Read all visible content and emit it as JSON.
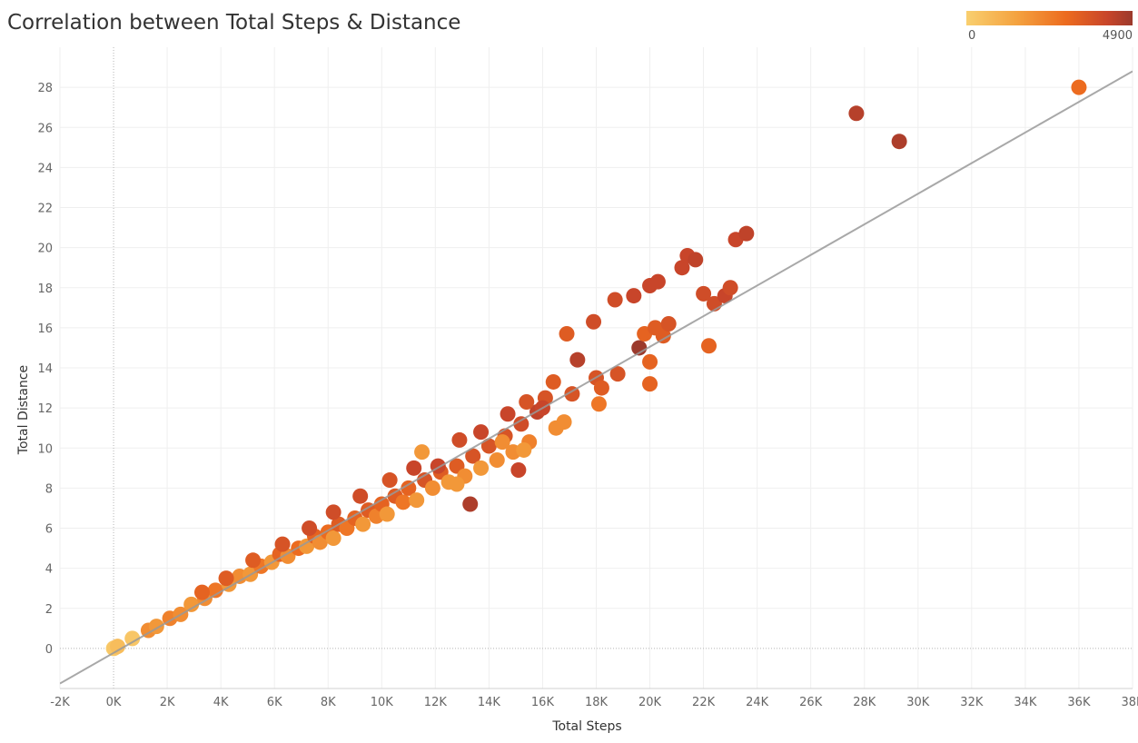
{
  "chart_data": {
    "type": "scatter",
    "title": "Correlation between Total Steps & Distance",
    "xlabel": "Total Steps",
    "ylabel": "Total Distance",
    "xlim": [
      -2000,
      38000
    ],
    "ylim": [
      -2,
      30
    ],
    "x_ticks": [
      -2000,
      0,
      2000,
      4000,
      6000,
      8000,
      10000,
      12000,
      14000,
      16000,
      18000,
      20000,
      22000,
      24000,
      26000,
      28000,
      30000,
      32000,
      34000,
      36000,
      38000
    ],
    "x_tick_labels": [
      "-2K",
      "0K",
      "2K",
      "4K",
      "6K",
      "8K",
      "10K",
      "12K",
      "14K",
      "16K",
      "18K",
      "20K",
      "22K",
      "24K",
      "26K",
      "28K",
      "30K",
      "32K",
      "34K",
      "36K",
      "38K"
    ],
    "y_ticks": [
      0,
      2,
      4,
      6,
      8,
      10,
      12,
      14,
      16,
      18,
      20,
      22,
      24,
      26,
      28
    ],
    "y_tick_labels": [
      "0",
      "2",
      "4",
      "6",
      "8",
      "10",
      "12",
      "14",
      "16",
      "18",
      "20",
      "22",
      "24",
      "26",
      "28"
    ],
    "grid": true,
    "color_legend": {
      "min_label": "0",
      "max_label": "4900",
      "placement": "top-right",
      "colors": [
        "#f9cf6f",
        "#f4a340",
        "#ec6b1f",
        "#c8452a",
        "#9b3a2c"
      ]
    },
    "trend_line": {
      "x": [
        -2000,
        38000
      ],
      "y": [
        -1.75,
        28.8
      ],
      "color": "#999999"
    },
    "points": [
      {
        "x": 0,
        "y": 0,
        "c": 0
      },
      {
        "x": 30,
        "y": 0.02,
        "c": 0.05
      },
      {
        "x": 150,
        "y": 0.1,
        "c": 0.1
      },
      {
        "x": 700,
        "y": 0.5,
        "c": 0.05
      },
      {
        "x": 1300,
        "y": 0.9,
        "c": 0.35
      },
      {
        "x": 1600,
        "y": 1.1,
        "c": 0.3
      },
      {
        "x": 2100,
        "y": 1.5,
        "c": 0.4
      },
      {
        "x": 2500,
        "y": 1.7,
        "c": 0.35
      },
      {
        "x": 2900,
        "y": 2.2,
        "c": 0.3
      },
      {
        "x": 3400,
        "y": 2.5,
        "c": 0.35
      },
      {
        "x": 3800,
        "y": 2.9,
        "c": 0.45
      },
      {
        "x": 4300,
        "y": 3.2,
        "c": 0.3
      },
      {
        "x": 4700,
        "y": 3.6,
        "c": 0.35
      },
      {
        "x": 5100,
        "y": 3.7,
        "c": 0.3
      },
      {
        "x": 5500,
        "y": 4.1,
        "c": 0.45
      },
      {
        "x": 5900,
        "y": 4.3,
        "c": 0.3
      },
      {
        "x": 6200,
        "y": 4.7,
        "c": 0.55
      },
      {
        "x": 6500,
        "y": 4.6,
        "c": 0.35
      },
      {
        "x": 6900,
        "y": 5.0,
        "c": 0.5
      },
      {
        "x": 7200,
        "y": 5.1,
        "c": 0.3
      },
      {
        "x": 7500,
        "y": 5.6,
        "c": 0.55
      },
      {
        "x": 7700,
        "y": 5.3,
        "c": 0.35
      },
      {
        "x": 8000,
        "y": 5.8,
        "c": 0.5
      },
      {
        "x": 8200,
        "y": 5.5,
        "c": 0.3
      },
      {
        "x": 8400,
        "y": 6.2,
        "c": 0.6
      },
      {
        "x": 8700,
        "y": 6.0,
        "c": 0.45
      },
      {
        "x": 9000,
        "y": 6.5,
        "c": 0.55
      },
      {
        "x": 9300,
        "y": 6.2,
        "c": 0.3
      },
      {
        "x": 9500,
        "y": 6.9,
        "c": 0.6
      },
      {
        "x": 9800,
        "y": 6.6,
        "c": 0.4
      },
      {
        "x": 10000,
        "y": 7.2,
        "c": 0.55
      },
      {
        "x": 10200,
        "y": 6.7,
        "c": 0.3
      },
      {
        "x": 10500,
        "y": 7.6,
        "c": 0.6
      },
      {
        "x": 10800,
        "y": 7.3,
        "c": 0.45
      },
      {
        "x": 11000,
        "y": 8.0,
        "c": 0.55
      },
      {
        "x": 11300,
        "y": 7.4,
        "c": 0.3
      },
      {
        "x": 11600,
        "y": 8.4,
        "c": 0.65
      },
      {
        "x": 11900,
        "y": 8.0,
        "c": 0.35
      },
      {
        "x": 12200,
        "y": 8.8,
        "c": 0.6
      },
      {
        "x": 12500,
        "y": 8.3,
        "c": 0.3
      },
      {
        "x": 12800,
        "y": 9.1,
        "c": 0.6
      },
      {
        "x": 13100,
        "y": 8.6,
        "c": 0.35
      },
      {
        "x": 13400,
        "y": 9.6,
        "c": 0.65
      },
      {
        "x": 13700,
        "y": 9.0,
        "c": 0.3
      },
      {
        "x": 14000,
        "y": 10.1,
        "c": 0.65
      },
      {
        "x": 14300,
        "y": 9.4,
        "c": 0.35
      },
      {
        "x": 14600,
        "y": 10.6,
        "c": 0.65
      },
      {
        "x": 14900,
        "y": 9.8,
        "c": 0.35
      },
      {
        "x": 15200,
        "y": 11.2,
        "c": 0.7
      },
      {
        "x": 15500,
        "y": 10.3,
        "c": 0.4
      },
      {
        "x": 15800,
        "y": 11.8,
        "c": 0.8
      },
      {
        "x": 16100,
        "y": 12.5,
        "c": 0.65
      },
      {
        "x": 16400,
        "y": 13.3,
        "c": 0.6
      },
      {
        "x": 16000,
        "y": 12.0,
        "c": 0.75
      },
      {
        "x": 15400,
        "y": 12.3,
        "c": 0.65
      },
      {
        "x": 14700,
        "y": 11.7,
        "c": 0.75
      },
      {
        "x": 13700,
        "y": 10.8,
        "c": 0.75
      },
      {
        "x": 12900,
        "y": 10.4,
        "c": 0.7
      },
      {
        "x": 12100,
        "y": 9.1,
        "c": 0.75
      },
      {
        "x": 11200,
        "y": 9.0,
        "c": 0.75
      },
      {
        "x": 10300,
        "y": 8.4,
        "c": 0.65
      },
      {
        "x": 9200,
        "y": 7.6,
        "c": 0.7
      },
      {
        "x": 8200,
        "y": 6.8,
        "c": 0.7
      },
      {
        "x": 7300,
        "y": 6.0,
        "c": 0.7
      },
      {
        "x": 6300,
        "y": 5.2,
        "c": 0.65
      },
      {
        "x": 5200,
        "y": 4.4,
        "c": 0.6
      },
      {
        "x": 4200,
        "y": 3.5,
        "c": 0.6
      },
      {
        "x": 3300,
        "y": 2.8,
        "c": 0.55
      },
      {
        "x": 11500,
        "y": 9.8,
        "c": 0.3
      },
      {
        "x": 12800,
        "y": 8.2,
        "c": 0.3
      },
      {
        "x": 13300,
        "y": 7.2,
        "c": 0.9
      },
      {
        "x": 15100,
        "y": 8.9,
        "c": 0.75
      },
      {
        "x": 14500,
        "y": 10.3,
        "c": 0.35
      },
      {
        "x": 15300,
        "y": 9.9,
        "c": 0.3
      },
      {
        "x": 16500,
        "y": 11.0,
        "c": 0.35
      },
      {
        "x": 16800,
        "y": 11.3,
        "c": 0.35
      },
      {
        "x": 16900,
        "y": 15.7,
        "c": 0.6
      },
      {
        "x": 17100,
        "y": 12.7,
        "c": 0.65
      },
      {
        "x": 17300,
        "y": 14.4,
        "c": 0.85
      },
      {
        "x": 17900,
        "y": 16.3,
        "c": 0.7
      },
      {
        "x": 18000,
        "y": 13.5,
        "c": 0.65
      },
      {
        "x": 18100,
        "y": 12.2,
        "c": 0.45
      },
      {
        "x": 18200,
        "y": 13.0,
        "c": 0.6
      },
      {
        "x": 18700,
        "y": 17.4,
        "c": 0.7
      },
      {
        "x": 18800,
        "y": 13.7,
        "c": 0.65
      },
      {
        "x": 19400,
        "y": 17.6,
        "c": 0.75
      },
      {
        "x": 19600,
        "y": 15.0,
        "c": 1.0
      },
      {
        "x": 19800,
        "y": 15.7,
        "c": 0.55
      },
      {
        "x": 20000,
        "y": 18.1,
        "c": 0.75
      },
      {
        "x": 20000,
        "y": 14.3,
        "c": 0.55
      },
      {
        "x": 20000,
        "y": 13.2,
        "c": 0.55
      },
      {
        "x": 20200,
        "y": 16.0,
        "c": 0.6
      },
      {
        "x": 20300,
        "y": 18.3,
        "c": 0.75
      },
      {
        "x": 20500,
        "y": 15.6,
        "c": 0.6
      },
      {
        "x": 20700,
        "y": 16.2,
        "c": 0.65
      },
      {
        "x": 21200,
        "y": 19.0,
        "c": 0.75
      },
      {
        "x": 21400,
        "y": 19.6,
        "c": 0.75
      },
      {
        "x": 21700,
        "y": 19.4,
        "c": 0.8
      },
      {
        "x": 22000,
        "y": 17.7,
        "c": 0.7
      },
      {
        "x": 22200,
        "y": 15.1,
        "c": 0.55
      },
      {
        "x": 22400,
        "y": 17.2,
        "c": 0.7
      },
      {
        "x": 22800,
        "y": 17.6,
        "c": 0.75
      },
      {
        "x": 23000,
        "y": 18.0,
        "c": 0.7
      },
      {
        "x": 23200,
        "y": 20.4,
        "c": 0.75
      },
      {
        "x": 23600,
        "y": 20.7,
        "c": 0.8
      },
      {
        "x": 27700,
        "y": 26.7,
        "c": 0.85
      },
      {
        "x": 29300,
        "y": 25.3,
        "c": 0.9
      },
      {
        "x": 36000,
        "y": 28.0,
        "c": 0.5
      }
    ]
  }
}
